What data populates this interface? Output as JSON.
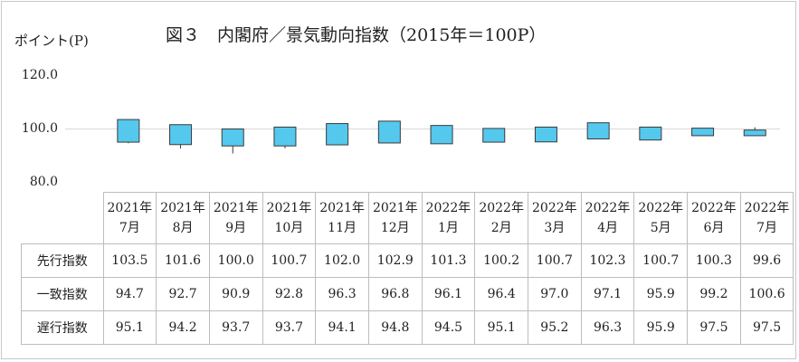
{
  "title": "図３　内閣府／景気動向指数（2015年＝100P）",
  "ylabel": "ポイント(P)",
  "colors": {
    "box": "#55c8ee",
    "outline": "#3a3a3a",
    "grid": "#d9d9d9"
  },
  "chart_data": {
    "type": "table",
    "ylim": [
      80,
      120
    ],
    "yticks": [
      "80.0",
      "100.0",
      "120.0"
    ],
    "categories": [
      [
        "2021年",
        "7月"
      ],
      [
        "2021年",
        "8月"
      ],
      [
        "2021年",
        "9月"
      ],
      [
        "2021年",
        "10月"
      ],
      [
        "2021年",
        "11月"
      ],
      [
        "2021年",
        "12月"
      ],
      [
        "2022年",
        "1月"
      ],
      [
        "2022年",
        "2月"
      ],
      [
        "2022年",
        "3月"
      ],
      [
        "2022年",
        "4月"
      ],
      [
        "2022年",
        "5月"
      ],
      [
        "2022年",
        "6月"
      ],
      [
        "2022年",
        "7月"
      ]
    ],
    "series": [
      {
        "name": "先行指数",
        "values": [
          "103.5",
          "101.6",
          "100.0",
          "100.7",
          "102.0",
          "102.9",
          "101.3",
          "100.2",
          "100.7",
          "102.3",
          "100.7",
          "100.3",
          "99.6"
        ]
      },
      {
        "name": "一致指数",
        "values": [
          "94.7",
          "92.7",
          "90.9",
          "92.8",
          "96.3",
          "96.8",
          "96.1",
          "96.4",
          "97.0",
          "97.1",
          "95.9",
          "99.2",
          "100.6"
        ]
      },
      {
        "name": "遅行指数",
        "values": [
          "95.1",
          "94.2",
          "93.7",
          "93.7",
          "94.1",
          "94.8",
          "94.5",
          "95.1",
          "95.2",
          "96.3",
          "95.9",
          "97.5",
          "97.5"
        ]
      }
    ]
  }
}
